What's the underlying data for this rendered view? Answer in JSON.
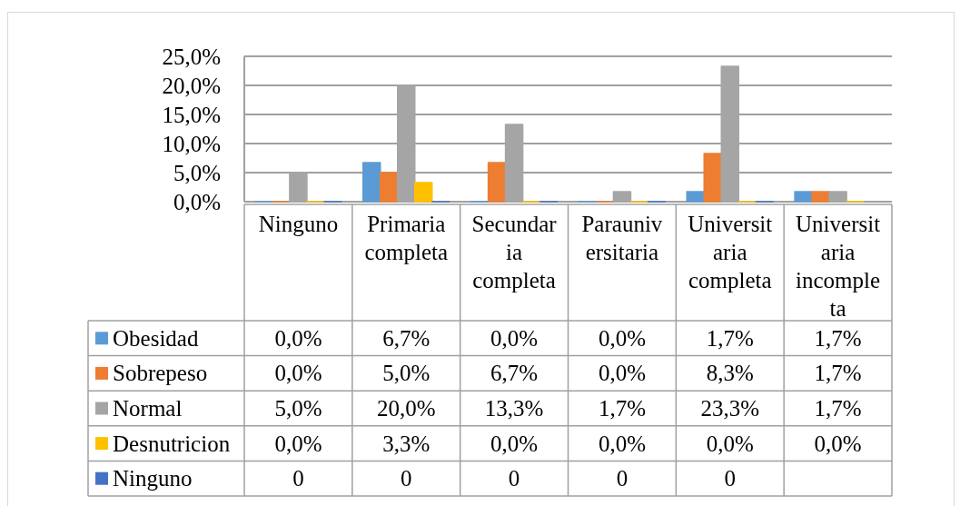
{
  "chart_data": {
    "type": "bar",
    "categories": [
      "Ninguno",
      "Primaria completa",
      "Secundaria completa",
      "Parauniversitaria",
      "Universitaria completa",
      "Universitaria incompleta"
    ],
    "series": [
      {
        "name": "Obesidad",
        "color": "#5b9bd5",
        "values": [
          0,
          6.7,
          0,
          0,
          1.7,
          1.7
        ],
        "value_labels": [
          "0,0%",
          "6,7%",
          "0,0%",
          "0,0%",
          "1,7%",
          "1,7%"
        ]
      },
      {
        "name": "Sobrepeso",
        "color": "#ed7d31",
        "values": [
          0,
          5.0,
          6.7,
          0,
          8.3,
          1.7
        ],
        "value_labels": [
          "0,0%",
          "5,0%",
          "6,7%",
          "0,0%",
          "8,3%",
          "1,7%"
        ]
      },
      {
        "name": "Normal",
        "color": "#a5a5a5",
        "values": [
          5.0,
          20.0,
          13.3,
          1.7,
          23.3,
          1.7
        ],
        "value_labels": [
          "5,0%",
          "20,0%",
          "13,3%",
          "1,7%",
          "23,3%",
          "1,7%"
        ]
      },
      {
        "name": "Desnutricion",
        "color": "#ffc000",
        "values": [
          0,
          3.3,
          0,
          0,
          0,
          0
        ],
        "value_labels": [
          "0,0%",
          "3,3%",
          "0,0%",
          "0,0%",
          "0,0%",
          "0,0%"
        ]
      },
      {
        "name": "Ninguno",
        "color": "#4472c4",
        "values": [
          0,
          0,
          0,
          0,
          0,
          null
        ],
        "value_labels": [
          "0",
          "0",
          "0",
          "0",
          "0",
          null
        ]
      }
    ],
    "ylim": [
      0,
      25
    ],
    "yticks": [
      {
        "value": 0,
        "label": "0,0%"
      },
      {
        "value": 5,
        "label": "5,0%"
      },
      {
        "value": 10,
        "label": "10,0%"
      },
      {
        "value": 15,
        "label": "15,0%"
      },
      {
        "value": 20,
        "label": "20,0%"
      },
      {
        "value": 25,
        "label": "25,0%"
      }
    ],
    "grid": "y",
    "legend": "bottom"
  }
}
